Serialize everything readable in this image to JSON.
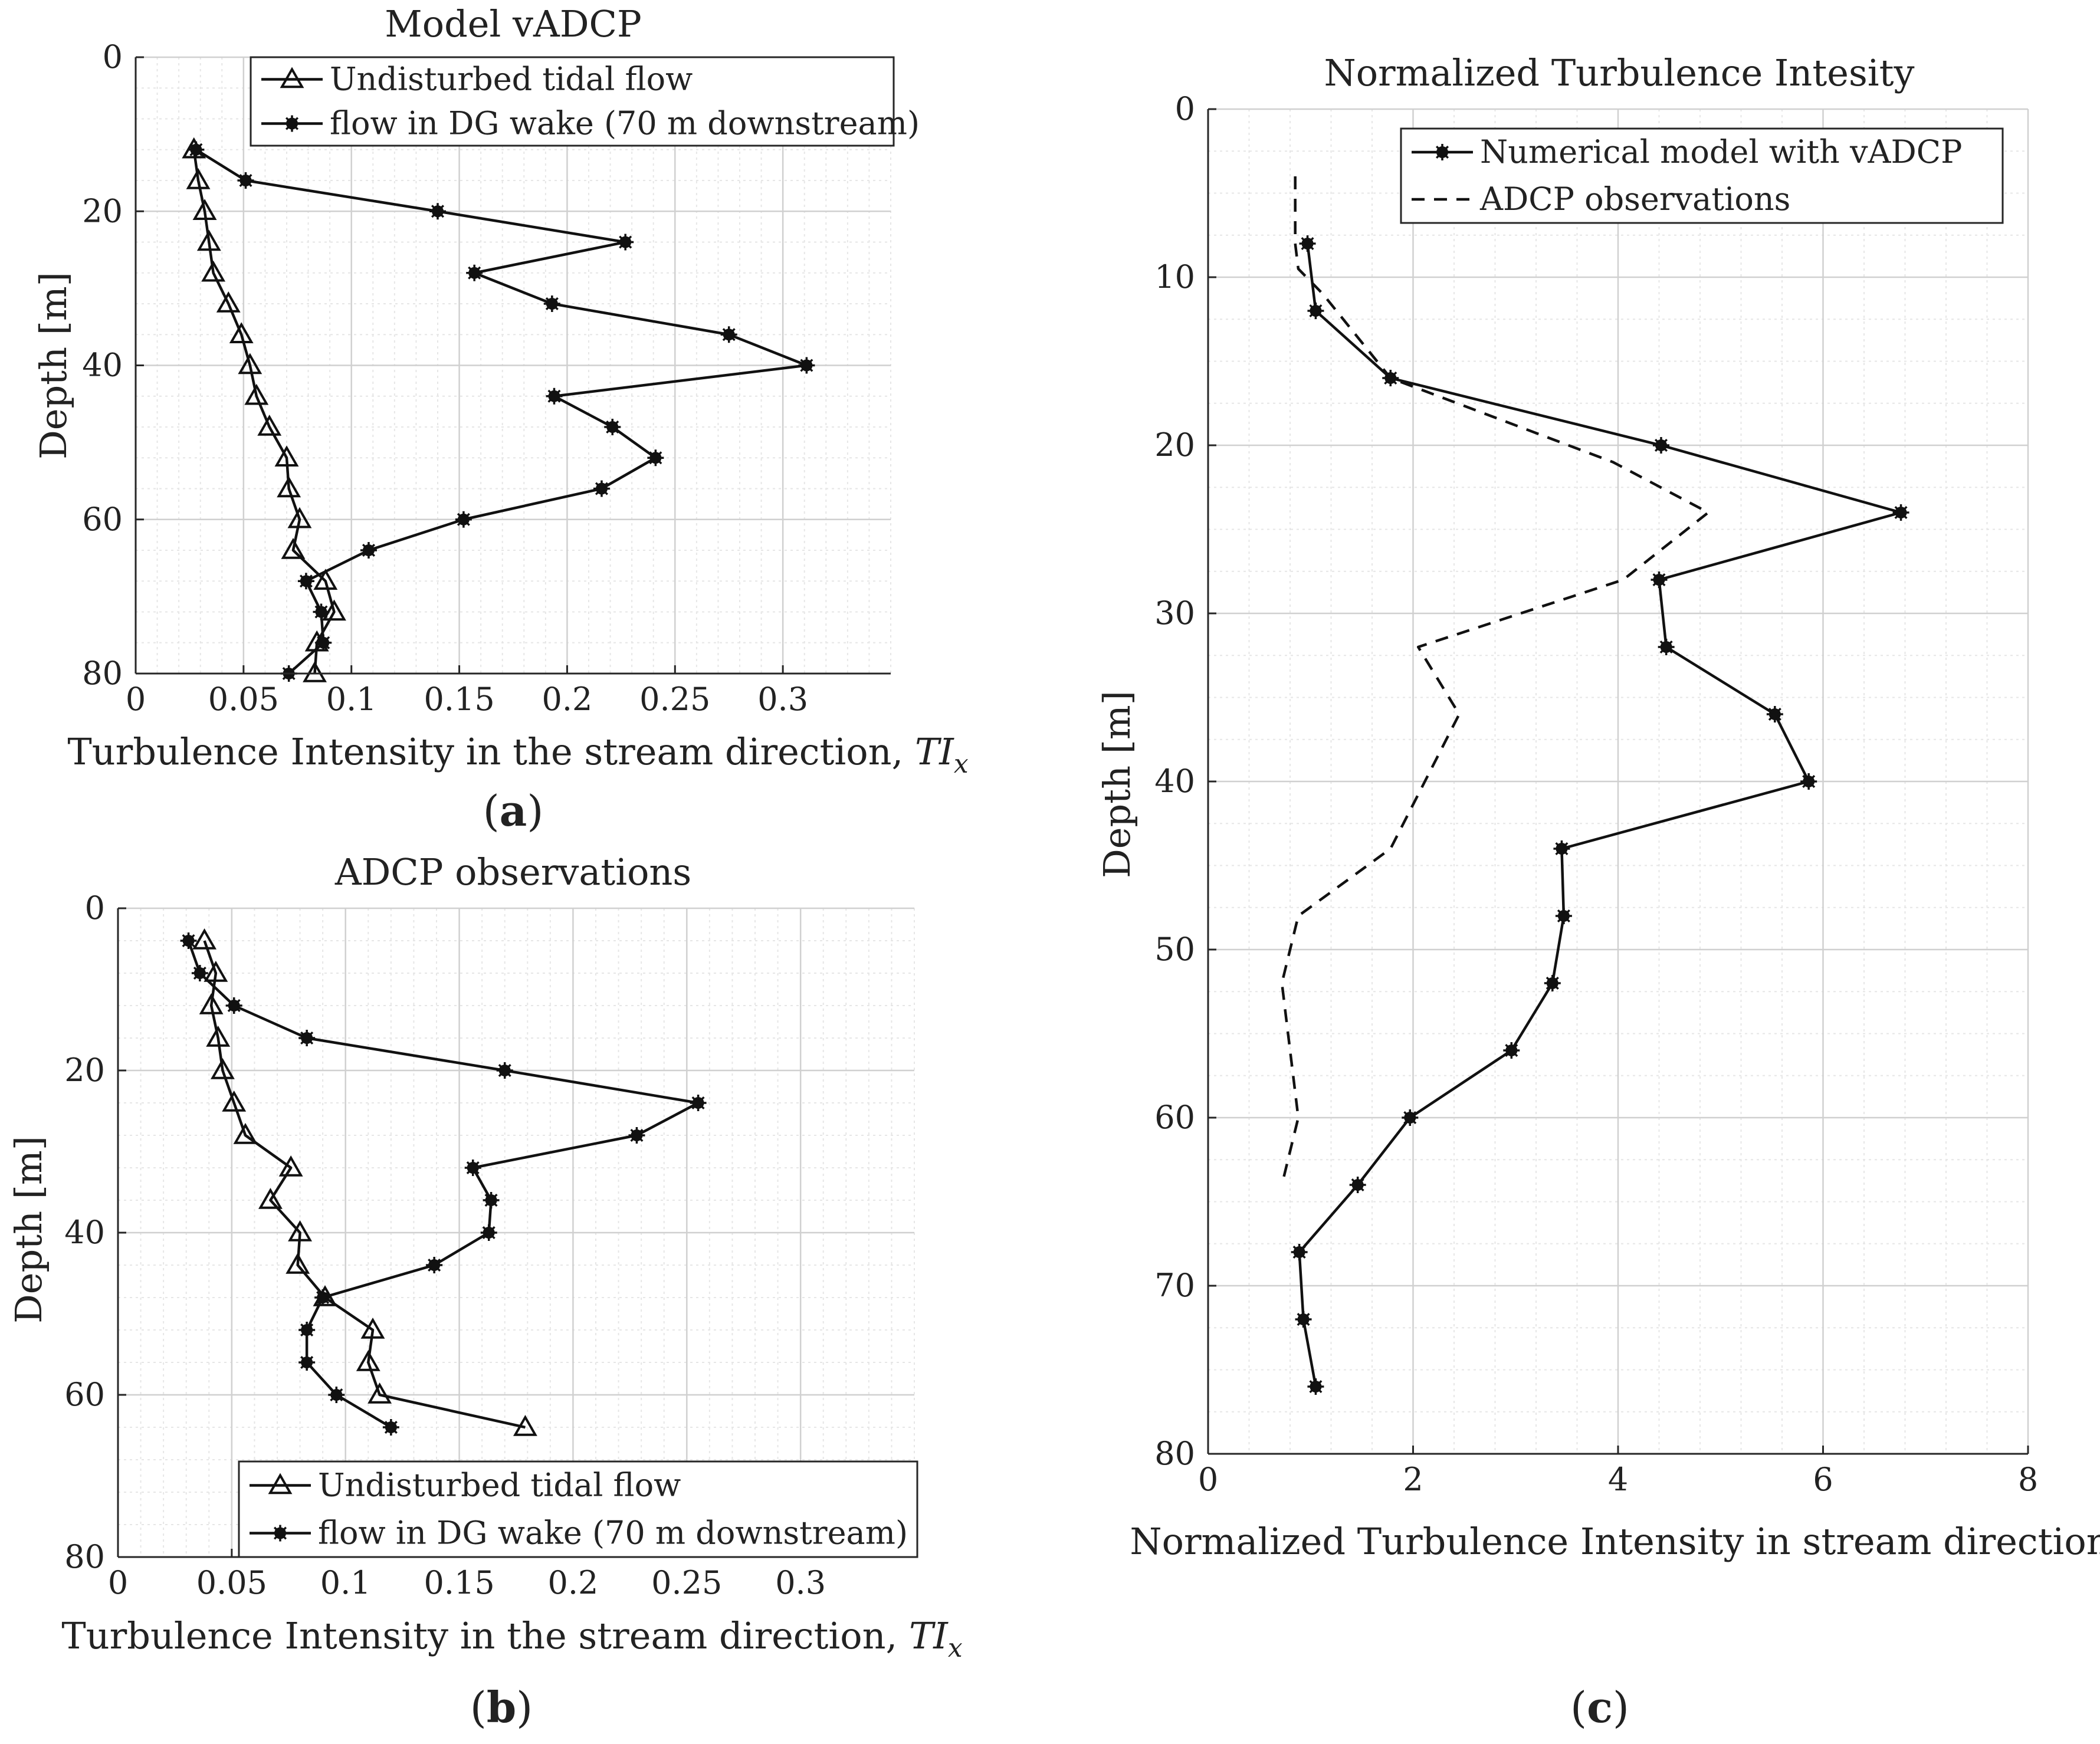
{
  "figure": {
    "panels": [
      {
        "id": "a",
        "label": "a"
      },
      {
        "id": "b",
        "label": "b"
      },
      {
        "id": "c",
        "label": "c"
      }
    ]
  },
  "chart_data": [
    {
      "id": "a",
      "type": "line",
      "title": "Model vADCP",
      "xlabel": "Turbulence Intensity in the stream direction, ",
      "xlabel_math": "TI",
      "xlabel_sub": "x",
      "ylabel": "Depth [m]",
      "xlim": [
        0,
        0.35
      ],
      "ylim": [
        0,
        80
      ],
      "y_reversed": true,
      "xticks": [
        0,
        0.05,
        0.1,
        0.15,
        0.2,
        0.25,
        0.3
      ],
      "xtick_labels": [
        "0",
        "0.05",
        "0.1",
        "0.15",
        "0.2",
        "0.25",
        "0.3"
      ],
      "yticks": [
        0,
        20,
        40,
        60,
        80
      ],
      "ytick_labels": [
        "0",
        "20",
        "40",
        "60",
        "80"
      ],
      "grid": true,
      "legend": "top-right",
      "series": [
        {
          "name": "Undisturbed tidal flow",
          "marker": "triangle",
          "x": [
            0.027,
            0.029,
            0.032,
            0.034,
            0.036,
            0.043,
            0.049,
            0.053,
            0.056,
            0.062,
            0.07,
            0.071,
            0.076,
            0.073,
            0.088,
            0.092,
            0.084,
            0.083
          ],
          "y": [
            12,
            16,
            20,
            24,
            28,
            32,
            36,
            40,
            44,
            48,
            52,
            56,
            60,
            64,
            68,
            72,
            76,
            80
          ]
        },
        {
          "name": "flow in DG wake (70 m downstream)",
          "marker": "star",
          "x": [
            0.028,
            0.051,
            0.14,
            0.227,
            0.157,
            0.193,
            0.275,
            0.311,
            0.194,
            0.221,
            0.241,
            0.216,
            0.152,
            0.108,
            0.079,
            0.086,
            0.087,
            0.071
          ],
          "y": [
            12,
            16,
            20,
            24,
            28,
            32,
            36,
            40,
            44,
            48,
            52,
            56,
            60,
            64,
            68,
            72,
            76,
            80
          ]
        }
      ]
    },
    {
      "id": "b",
      "type": "line",
      "title": "ADCP observations",
      "xlabel": "Turbulence Intensity in the stream direction, ",
      "xlabel_math": "TI",
      "xlabel_sub": "x",
      "ylabel": "Depth [m]",
      "xlim": [
        0,
        0.35
      ],
      "ylim": [
        0,
        80
      ],
      "y_reversed": true,
      "xticks": [
        0,
        0.05,
        0.1,
        0.15,
        0.2,
        0.25,
        0.3
      ],
      "xtick_labels": [
        "0",
        "0.05",
        "0.1",
        "0.15",
        "0.2",
        "0.25",
        "0.3"
      ],
      "yticks": [
        0,
        20,
        40,
        60,
        80
      ],
      "ytick_labels": [
        "0",
        "20",
        "40",
        "60",
        "80"
      ],
      "grid": true,
      "legend": "bottom-right",
      "series": [
        {
          "name": "Undisturbed tidal flow",
          "marker": "triangle",
          "x": [
            0.038,
            0.043,
            0.041,
            0.044,
            0.046,
            0.051,
            0.056,
            0.076,
            0.067,
            0.08,
            0.079,
            0.091,
            0.112,
            0.11,
            0.115,
            0.179
          ],
          "y": [
            4,
            8,
            12,
            16,
            20,
            24,
            28,
            32,
            36,
            40,
            44,
            48,
            52,
            56,
            60,
            64
          ]
        },
        {
          "name": "flow in DG wake (70 m downstream)",
          "marker": "star",
          "x": [
            0.031,
            0.036,
            0.051,
            0.083,
            0.17,
            0.255,
            0.228,
            0.156,
            0.164,
            0.163,
            0.139,
            0.09,
            0.083,
            0.083,
            0.096,
            0.12
          ],
          "y": [
            4,
            8,
            12,
            16,
            20,
            24,
            28,
            32,
            36,
            40,
            44,
            48,
            52,
            56,
            60,
            64
          ]
        }
      ]
    },
    {
      "id": "c",
      "type": "line",
      "title": "Normalized Turbulence Intesity",
      "xlabel": "Normalized Turbulence Intensity in stream direction",
      "ylabel": "Depth [m]",
      "xlim": [
        0,
        8
      ],
      "ylim": [
        0,
        80
      ],
      "y_reversed": true,
      "xticks": [
        0,
        2,
        4,
        6,
        8
      ],
      "xtick_labels": [
        "0",
        "2",
        "4",
        "6",
        "8"
      ],
      "yticks": [
        0,
        10,
        20,
        30,
        40,
        50,
        60,
        70,
        80
      ],
      "ytick_labels": [
        "0",
        "10",
        "20",
        "30",
        "40",
        "50",
        "60",
        "70",
        "80"
      ],
      "grid": true,
      "legend": "top-right",
      "series": [
        {
          "name": "Numerical model with vADCP",
          "marker": "star",
          "dash": "solid",
          "x": [
            0.97,
            1.05,
            1.78,
            4.42,
            6.76,
            4.4,
            4.47,
            5.53,
            5.86,
            3.45,
            3.47,
            3.36,
            2.96,
            1.97,
            1.46,
            0.89,
            0.93,
            1.05
          ],
          "y": [
            8,
            12,
            16,
            20,
            24,
            28,
            32,
            36,
            40,
            44,
            48,
            52,
            56,
            60,
            64,
            68,
            72,
            76
          ]
        },
        {
          "name": "ADCP observations",
          "marker": "none",
          "dash": "dashed",
          "x": [
            0.85,
            0.85,
            0.88,
            1.12,
            1.78,
            3.95,
            4.88,
            4.05,
            2.05,
            2.45,
            1.78,
            0.88,
            0.72,
            0.88,
            0.72
          ],
          "y": [
            4,
            8,
            9.5,
            11,
            16,
            21,
            24,
            28,
            32,
            36,
            44,
            48,
            52,
            60,
            64
          ]
        }
      ]
    }
  ]
}
